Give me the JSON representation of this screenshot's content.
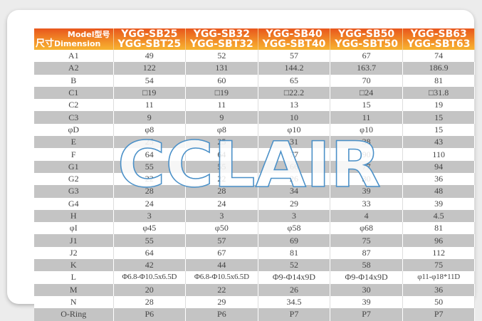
{
  "header": {
    "corner_top": "Model型号",
    "corner_bottom_cn": "尺寸",
    "corner_bottom_en": "Dimension",
    "models": [
      [
        "YGG-SB25",
        "YGG-SBT25"
      ],
      [
        "YGG-SB32",
        "YGG-SBT32"
      ],
      [
        "YGG-SB40",
        "YGG-SBT40"
      ],
      [
        "YGG-SB50",
        "YGG-SBT50"
      ],
      [
        "YGG-SB63",
        "YGG-SBT63"
      ]
    ]
  },
  "rows": [
    [
      "A1",
      "49",
      "52",
      "57",
      "67",
      "74"
    ],
    [
      "A2",
      "122",
      "131",
      "144.2",
      "163.7",
      "186.9"
    ],
    [
      "B",
      "54",
      "60",
      "65",
      "70",
      "81"
    ],
    [
      "C1",
      "□19",
      "□19",
      "□22.2",
      "□24",
      "□31.8"
    ],
    [
      "C2",
      "11",
      "11",
      "13",
      "15",
      "19"
    ],
    [
      "C3",
      "9",
      "9",
      "10",
      "11",
      "15"
    ],
    [
      "φD",
      "φ8",
      "φ8",
      "φ10",
      "φ10",
      "15"
    ],
    [
      "E",
      "25",
      "25",
      "31",
      "38",
      "43"
    ],
    [
      "F",
      "64",
      "64",
      "77",
      "90",
      "110"
    ],
    [
      "G1",
      "55",
      "55",
      "66",
      "77",
      "94"
    ],
    [
      "G2",
      "22",
      "22",
      "26",
      "30",
      "36"
    ],
    [
      "G3",
      "28",
      "28",
      "34",
      "39",
      "48"
    ],
    [
      "G4",
      "24",
      "24",
      "29",
      "33",
      "39"
    ],
    [
      "H",
      "3",
      "3",
      "3",
      "4",
      "4.5"
    ],
    [
      "φI",
      "φ45",
      "φ50",
      "φ58",
      "φ68",
      "81"
    ],
    [
      "J1",
      "55",
      "57",
      "69",
      "75",
      "96"
    ],
    [
      "J2",
      "64",
      "67",
      "81",
      "87",
      "112"
    ],
    [
      "K",
      "42",
      "44",
      "52",
      "58",
      "75"
    ],
    [
      "L",
      "Φ6.8-Φ10.5x6.5D",
      "Φ6.8-Φ10.5x6.5D",
      "Φ9-Φ14x9D",
      "Φ9-Φ14x9D",
      "φ11-φ18*11D"
    ],
    [
      "M",
      "20",
      "22",
      "26",
      "30",
      "36"
    ],
    [
      "N",
      "28",
      "29",
      "34.5",
      "39",
      "50"
    ],
    [
      "O-Ring",
      "P6",
      "P6",
      "P7",
      "P7",
      "P7"
    ]
  ],
  "watermark": "CCLAIR",
  "colors": {
    "header_top": "#e8561c",
    "header_bottom": "#f7b431",
    "stripe": "#c4c4c4",
    "watermark_stroke": "#4a90c8"
  }
}
